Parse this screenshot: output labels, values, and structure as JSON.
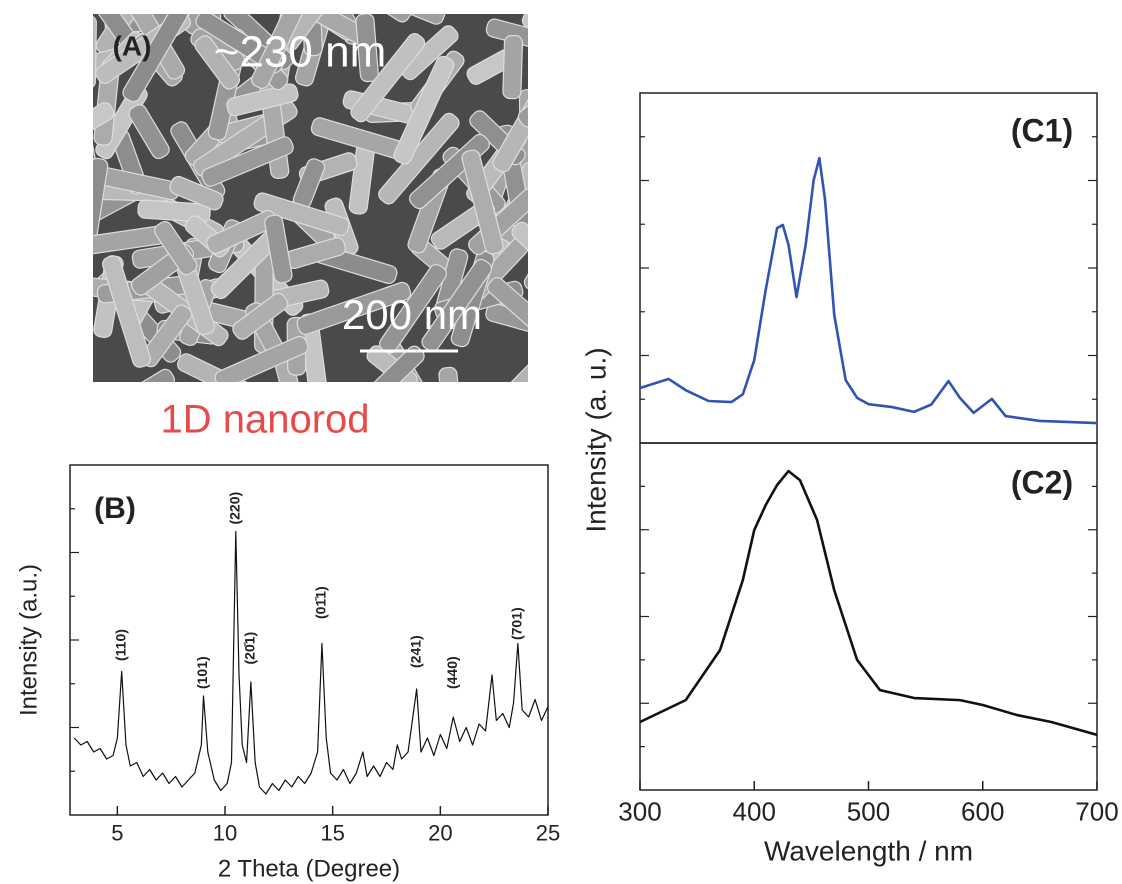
{
  "panel_a": {
    "label": "(A)",
    "size_text": "~230 nm",
    "scale_bar": "200 nm",
    "caption": "1D nanorod"
  },
  "chart_data": [
    {
      "type": "line",
      "panel": "(B)",
      "x_label": "2 Theta (Degree)",
      "y_label": "Intensity (a.u.)",
      "x": [
        3.0,
        3.3,
        3.6,
        3.9,
        4.2,
        4.5,
        4.8,
        5.0,
        5.2,
        5.4,
        5.6,
        5.9,
        6.2,
        6.5,
        6.8,
        7.1,
        7.4,
        7.7,
        8.0,
        8.3,
        8.6,
        8.9,
        9.0,
        9.2,
        9.5,
        9.8,
        10.1,
        10.3,
        10.5,
        10.65,
        10.8,
        11.0,
        11.2,
        11.4,
        11.6,
        11.9,
        12.2,
        12.5,
        12.8,
        13.1,
        13.4,
        13.7,
        14.0,
        14.3,
        14.5,
        14.7,
        14.9,
        15.2,
        15.5,
        15.8,
        16.1,
        16.4,
        16.6,
        16.9,
        17.2,
        17.5,
        17.8,
        18.0,
        18.2,
        18.5,
        18.9,
        19.1,
        19.4,
        19.7,
        20.0,
        20.3,
        20.6,
        20.9,
        21.2,
        21.5,
        21.8,
        22.1,
        22.4,
        22.6,
        22.9,
        23.2,
        23.4,
        23.6,
        23.8,
        24.1,
        24.4,
        24.7,
        25.0
      ],
      "series": [
        {
          "color": "#111111",
          "values": [
            22,
            20,
            21,
            18,
            19,
            16,
            17,
            22,
            41,
            20,
            14,
            15,
            11,
            13,
            10,
            12,
            9,
            11,
            8,
            10,
            12,
            20,
            34,
            18,
            10,
            7,
            9,
            15,
            81,
            40,
            20,
            15,
            38,
            15,
            8,
            6,
            9,
            7,
            10,
            8,
            11,
            9,
            12,
            18,
            49,
            22,
            12,
            10,
            13,
            9,
            12,
            18,
            11,
            14,
            11,
            15,
            13,
            20,
            16,
            18,
            36,
            18,
            22,
            17,
            23,
            19,
            28,
            21,
            25,
            20,
            26,
            24,
            40,
            27,
            29,
            25,
            32,
            49,
            30,
            28,
            33,
            27,
            31
          ]
        }
      ],
      "xlim": [
        2.8,
        25
      ],
      "ylim": [
        0,
        100
      ],
      "xticks": [
        5,
        10,
        15,
        20,
        25
      ],
      "annotations": [
        {
          "text": "(110)",
          "x": 5.2,
          "y": 44
        },
        {
          "text": "(101)",
          "x": 9.0,
          "y": 36
        },
        {
          "text": "(220)",
          "x": 10.5,
          "y": 83
        },
        {
          "text": "(20̄1)",
          "x": 11.2,
          "y": 43
        },
        {
          "text": "(01̄1)",
          "x": 14.5,
          "y": 56
        },
        {
          "text": "(241)",
          "x": 18.9,
          "y": 42
        },
        {
          "text": "(440)",
          "x": 20.6,
          "y": 36
        },
        {
          "text": "(701)",
          "x": 23.6,
          "y": 50
        }
      ]
    },
    {
      "type": "line",
      "panel": "(C1)",
      "y_label": "Intensity (a. u.)",
      "x": [
        300,
        325,
        340,
        360,
        380,
        390,
        400,
        410,
        420,
        425,
        430,
        437,
        445,
        452,
        457,
        462,
        470,
        480,
        490,
        500,
        520,
        540,
        555,
        570,
        580,
        592,
        608,
        620,
        650,
        700
      ],
      "series": [
        {
          "color": "#2f55b0",
          "values": [
            15.7,
            18.3,
            15.1,
            12,
            11.7,
            13.9,
            23.7,
            43.7,
            61.4,
            62.3,
            56.6,
            41.7,
            56.6,
            75.1,
            81.4,
            69.4,
            36.6,
            18,
            12.9,
            11.1,
            10.3,
            8.9,
            11,
            17.7,
            12.9,
            8.6,
            12.6,
            7.7,
            6.3,
            5.7
          ]
        }
      ],
      "xlim": [
        300,
        700
      ],
      "ylim": [
        0,
        100
      ]
    },
    {
      "type": "line",
      "panel": "(C2)",
      "x_label": "Wavelength / nm",
      "x": [
        300,
        340,
        370,
        390,
        400,
        410,
        420,
        430,
        440,
        455,
        470,
        490,
        510,
        540,
        580,
        600,
        630,
        660,
        700
      ],
      "series": [
        {
          "color": "#111111",
          "values": [
            19.6,
            25.9,
            40.3,
            60.5,
            74.9,
            82.1,
            87.9,
            91.9,
            89.3,
            77.8,
            57.6,
            37.5,
            28.8,
            26.5,
            25.9,
            24.5,
            21.6,
            19.6,
            15.9
          ]
        }
      ],
      "xlim": [
        300,
        700
      ],
      "ylim": [
        0,
        100
      ],
      "xticks": [
        300,
        400,
        500,
        600,
        700
      ]
    }
  ]
}
